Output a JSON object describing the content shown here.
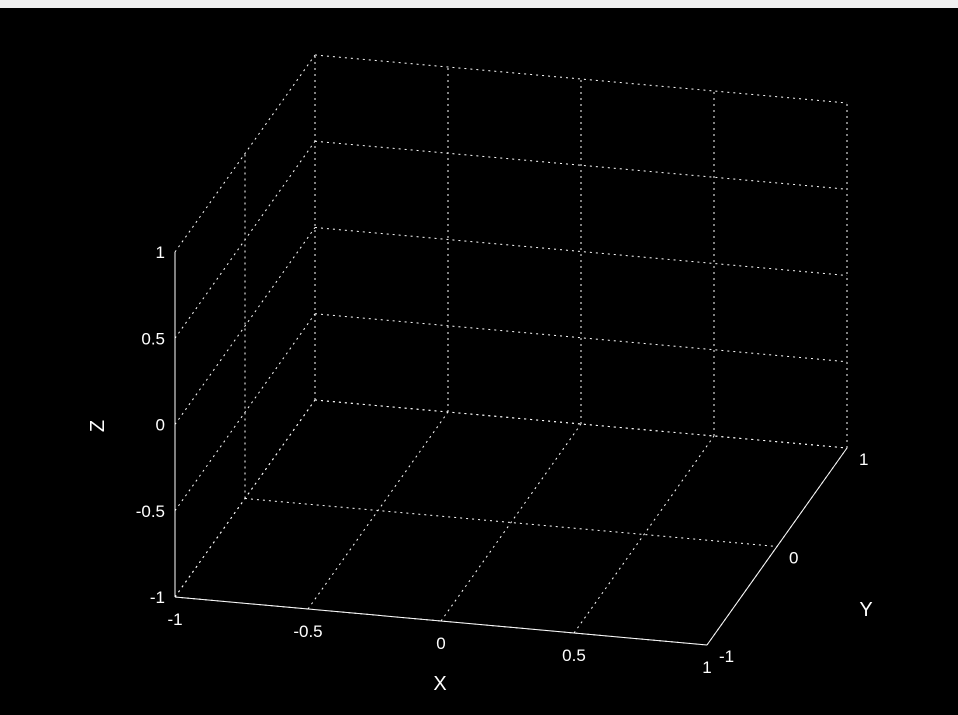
{
  "chart_data": {
    "type": "3d-axes",
    "title": "",
    "xlabel": "X",
    "ylabel": "Y",
    "zlabel": "Z",
    "xlim": [
      -1,
      1
    ],
    "ylim": [
      -1,
      1
    ],
    "zlim": [
      -1,
      1
    ],
    "grid": true,
    "background": "#000000",
    "axis_color": "#ffffff",
    "x_ticks": [
      {
        "value": -1,
        "label": "-1"
      },
      {
        "value": -0.5,
        "label": "-0.5"
      },
      {
        "value": 0,
        "label": "0"
      },
      {
        "value": 0.5,
        "label": "0.5"
      },
      {
        "value": 1,
        "label": "1"
      }
    ],
    "y_ticks": [
      {
        "value": -1,
        "label": "-1"
      },
      {
        "value": 0,
        "label": "0"
      },
      {
        "value": 1,
        "label": "1"
      }
    ],
    "z_ticks": [
      {
        "value": -1,
        "label": "-1"
      },
      {
        "value": -0.5,
        "label": "-0.5"
      },
      {
        "value": 0,
        "label": "0"
      },
      {
        "value": 0.5,
        "label": "0.5"
      },
      {
        "value": 1,
        "label": "1"
      }
    ],
    "series": []
  }
}
